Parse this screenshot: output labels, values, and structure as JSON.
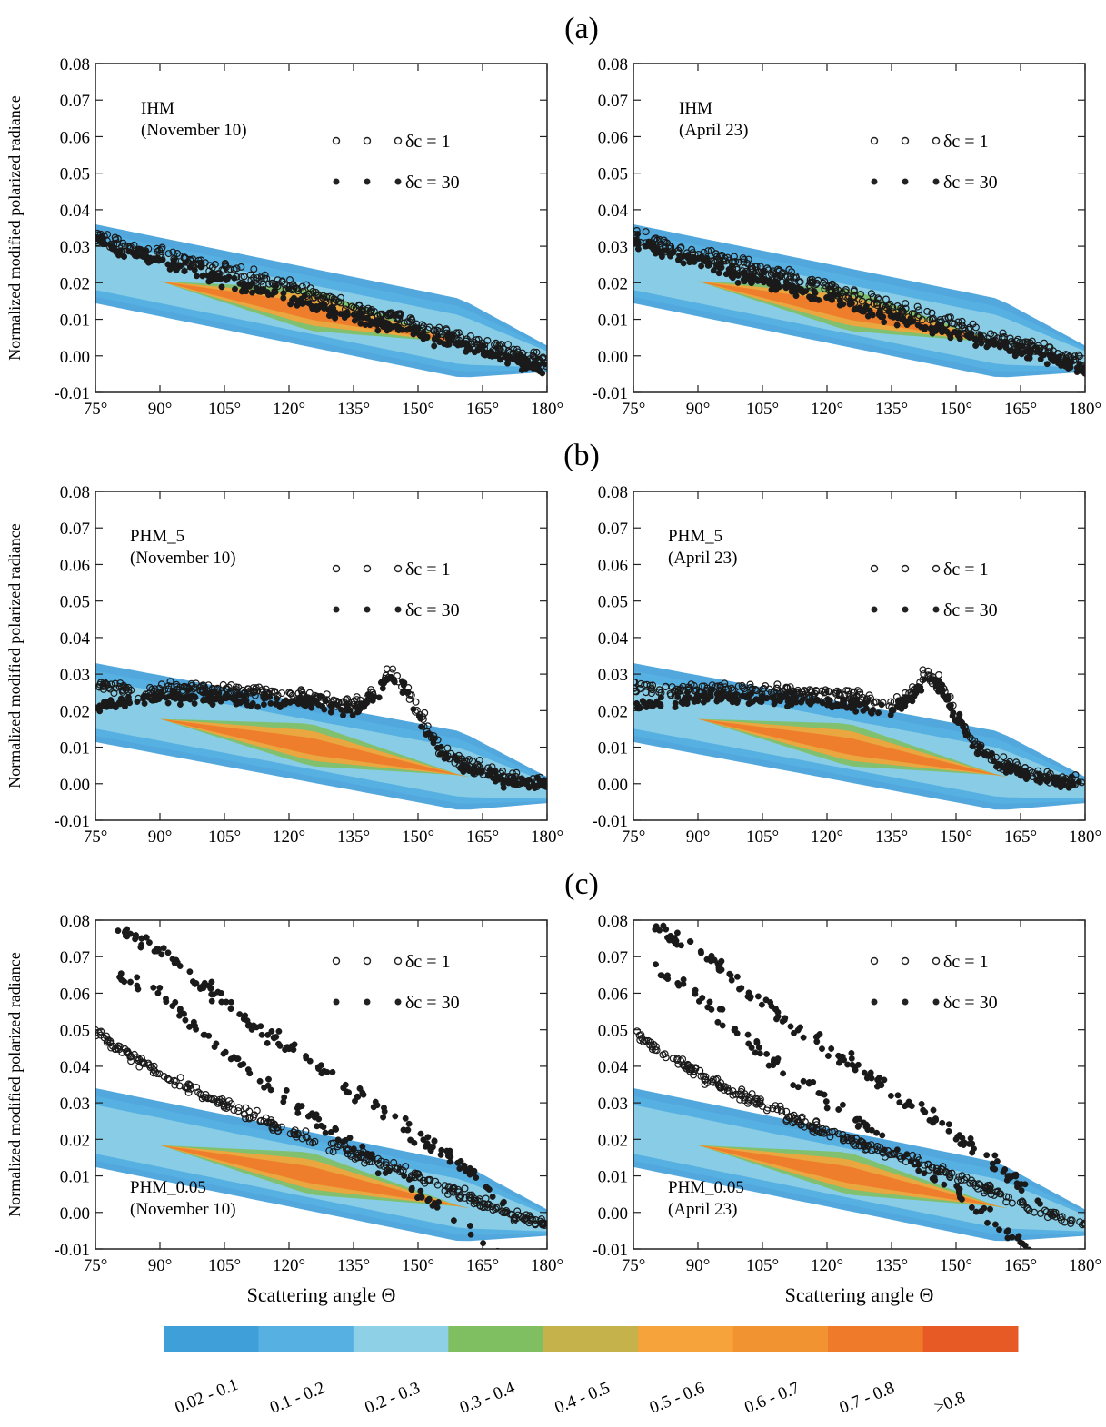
{
  "figure": {
    "panel_labels": [
      "(a)",
      "(b)",
      "(c)"
    ],
    "ylabel": "Normalized modified polarized radiance",
    "xlabel": "Scattering angle Θ",
    "x_ticks": [
      "75°",
      "90°",
      "105°",
      "120°",
      "135°",
      "150°",
      "165°",
      "180°"
    ],
    "y_ticks": [
      "0.08",
      "0.07",
      "0.06",
      "0.05",
      "0.04",
      "0.03",
      "0.02",
      "0.01",
      "0.00",
      "-0.01"
    ],
    "legend_open": "δc = 1",
    "legend_filled": "δc = 30"
  },
  "colorbar": {
    "labels": [
      "0.02 - 0.1",
      "0.1 - 0.2",
      "0.2 - 0.3",
      "0.3 - 0.4",
      "0.4 - 0.5",
      "0.5 - 0.6",
      "0.6 - 0.7",
      "0.7 - 0.8",
      ">0.8"
    ],
    "colors": [
      "#3f9fd9",
      "#56b0e2",
      "#8ed0e6",
      "#7fbf62",
      "#c5b24a",
      "#f5a33a",
      "#f29332",
      "#ef7a2a",
      "#e85a25"
    ]
  },
  "chart_data": [
    {
      "type": "scatter",
      "panel": "(a)",
      "title": "IHM",
      "subtitle": "(November 10)",
      "model": "IHM",
      "xlim": [
        75,
        180
      ],
      "ylim": [
        -0.01,
        0.08
      ],
      "series": [
        {
          "name": "δc = 1",
          "marker": "open",
          "x": [
            75,
            80,
            90,
            100,
            110,
            120,
            130,
            140,
            150,
            160,
            170,
            180
          ],
          "y": [
            0.033,
            0.031,
            0.028,
            0.025,
            0.022,
            0.019,
            0.015,
            0.012,
            0.009,
            0.005,
            0.002,
            -0.002
          ]
        },
        {
          "name": "δc = 30",
          "marker": "filled",
          "x": [
            75,
            80,
            90,
            100,
            110,
            120,
            130,
            140,
            150,
            160,
            170,
            180
          ],
          "y": [
            0.032,
            0.029,
            0.026,
            0.022,
            0.019,
            0.016,
            0.012,
            0.009,
            0.006,
            0.003,
            0.0,
            -0.004
          ]
        }
      ]
    },
    {
      "type": "scatter",
      "panel": "(a)",
      "title": "IHM",
      "subtitle": "(April 23)",
      "model": "IHM",
      "xlim": [
        75,
        180
      ],
      "ylim": [
        -0.01,
        0.08
      ],
      "series": [
        {
          "name": "δc = 1",
          "marker": "open",
          "x": [
            75,
            80,
            90,
            100,
            110,
            120,
            130,
            140,
            150,
            160,
            170,
            180
          ],
          "y": [
            0.033,
            0.031,
            0.028,
            0.025,
            0.022,
            0.019,
            0.015,
            0.012,
            0.009,
            0.005,
            0.002,
            -0.002
          ]
        },
        {
          "name": "δc = 30",
          "marker": "filled",
          "x": [
            75,
            80,
            90,
            100,
            110,
            120,
            130,
            140,
            150,
            160,
            170,
            180
          ],
          "y": [
            0.032,
            0.029,
            0.026,
            0.022,
            0.019,
            0.016,
            0.012,
            0.009,
            0.006,
            0.003,
            0.0,
            -0.004
          ]
        }
      ]
    },
    {
      "type": "scatter",
      "panel": "(b)",
      "title": "PHM_5",
      "subtitle": "(November 10)",
      "model": "PHM5",
      "xlim": [
        75,
        180
      ],
      "ylim": [
        -0.01,
        0.08
      ],
      "series": [
        {
          "name": "δc = 1",
          "marker": "open",
          "x": [
            75,
            85,
            95,
            105,
            115,
            125,
            135,
            140,
            143,
            146,
            150,
            155,
            160,
            170,
            180
          ],
          "y": [
            0.027,
            0.025,
            0.026,
            0.026,
            0.025,
            0.024,
            0.022,
            0.025,
            0.03,
            0.028,
            0.02,
            0.01,
            0.006,
            0.002,
            0.0
          ]
        },
        {
          "name": "δc = 30",
          "marker": "filled",
          "x": [
            75,
            85,
            95,
            105,
            115,
            125,
            135,
            140,
            143,
            146,
            150,
            155,
            160,
            170,
            180
          ],
          "y": [
            0.021,
            0.023,
            0.024,
            0.023,
            0.023,
            0.022,
            0.02,
            0.024,
            0.029,
            0.027,
            0.018,
            0.009,
            0.005,
            0.001,
            0.0
          ]
        }
      ]
    },
    {
      "type": "scatter",
      "panel": "(b)",
      "title": "PHM_5",
      "subtitle": "(April 23)",
      "model": "PHM5",
      "xlim": [
        75,
        180
      ],
      "ylim": [
        -0.01,
        0.08
      ],
      "series": [
        {
          "name": "δc = 1",
          "marker": "open",
          "x": [
            75,
            85,
            95,
            105,
            115,
            125,
            135,
            140,
            143,
            146,
            150,
            155,
            160,
            170,
            180
          ],
          "y": [
            0.027,
            0.025,
            0.026,
            0.026,
            0.025,
            0.024,
            0.022,
            0.025,
            0.03,
            0.028,
            0.02,
            0.01,
            0.006,
            0.002,
            0.0
          ]
        },
        {
          "name": "δc = 30",
          "marker": "filled",
          "x": [
            75,
            85,
            95,
            105,
            115,
            125,
            135,
            140,
            143,
            146,
            150,
            155,
            160,
            170,
            180
          ],
          "y": [
            0.021,
            0.023,
            0.024,
            0.023,
            0.023,
            0.022,
            0.02,
            0.024,
            0.029,
            0.027,
            0.018,
            0.009,
            0.005,
            0.001,
            0.0
          ]
        }
      ]
    },
    {
      "type": "scatter",
      "panel": "(c)",
      "title": "PHM_0.05",
      "subtitle": "(November 10)",
      "model": "PHM005",
      "xlim": [
        75,
        180
      ],
      "ylim": [
        -0.01,
        0.08
      ],
      "series": [
        {
          "name": "δc = 1",
          "marker": "open",
          "x": [
            75,
            80,
            90,
            100,
            110,
            120,
            130,
            140,
            150,
            160,
            170,
            180
          ],
          "y": [
            0.05,
            0.045,
            0.038,
            0.032,
            0.027,
            0.022,
            0.018,
            0.014,
            0.01,
            0.005,
            0.0,
            -0.003
          ]
        },
        {
          "name": "δc = 30",
          "marker": "filled",
          "x": [
            80,
            90,
            100,
            110,
            120,
            130,
            140,
            150,
            160,
            165,
            170
          ],
          "y": [
            0.078,
            0.072,
            0.062,
            0.053,
            0.045,
            0.037,
            0.029,
            0.021,
            0.013,
            0.008,
            0.002
          ]
        }
      ]
    },
    {
      "type": "scatter",
      "panel": "(c)",
      "title": "PHM_0.05",
      "subtitle": "(April 23)",
      "model": "PHM005",
      "xlim": [
        75,
        180
      ],
      "ylim": [
        -0.01,
        0.08
      ],
      "series": [
        {
          "name": "δc = 1",
          "marker": "open",
          "x": [
            75,
            80,
            90,
            100,
            110,
            120,
            130,
            140,
            150,
            160,
            170,
            180
          ],
          "y": [
            0.05,
            0.045,
            0.038,
            0.032,
            0.027,
            0.022,
            0.018,
            0.014,
            0.01,
            0.005,
            0.0,
            -0.003
          ]
        },
        {
          "name": "δc = 30",
          "marker": "filled",
          "x": [
            80,
            90,
            100,
            110,
            120,
            130,
            140,
            150,
            160,
            165,
            170
          ],
          "y": [
            0.078,
            0.072,
            0.062,
            0.053,
            0.045,
            0.037,
            0.029,
            0.021,
            0.013,
            0.008,
            0.002
          ]
        }
      ]
    }
  ]
}
